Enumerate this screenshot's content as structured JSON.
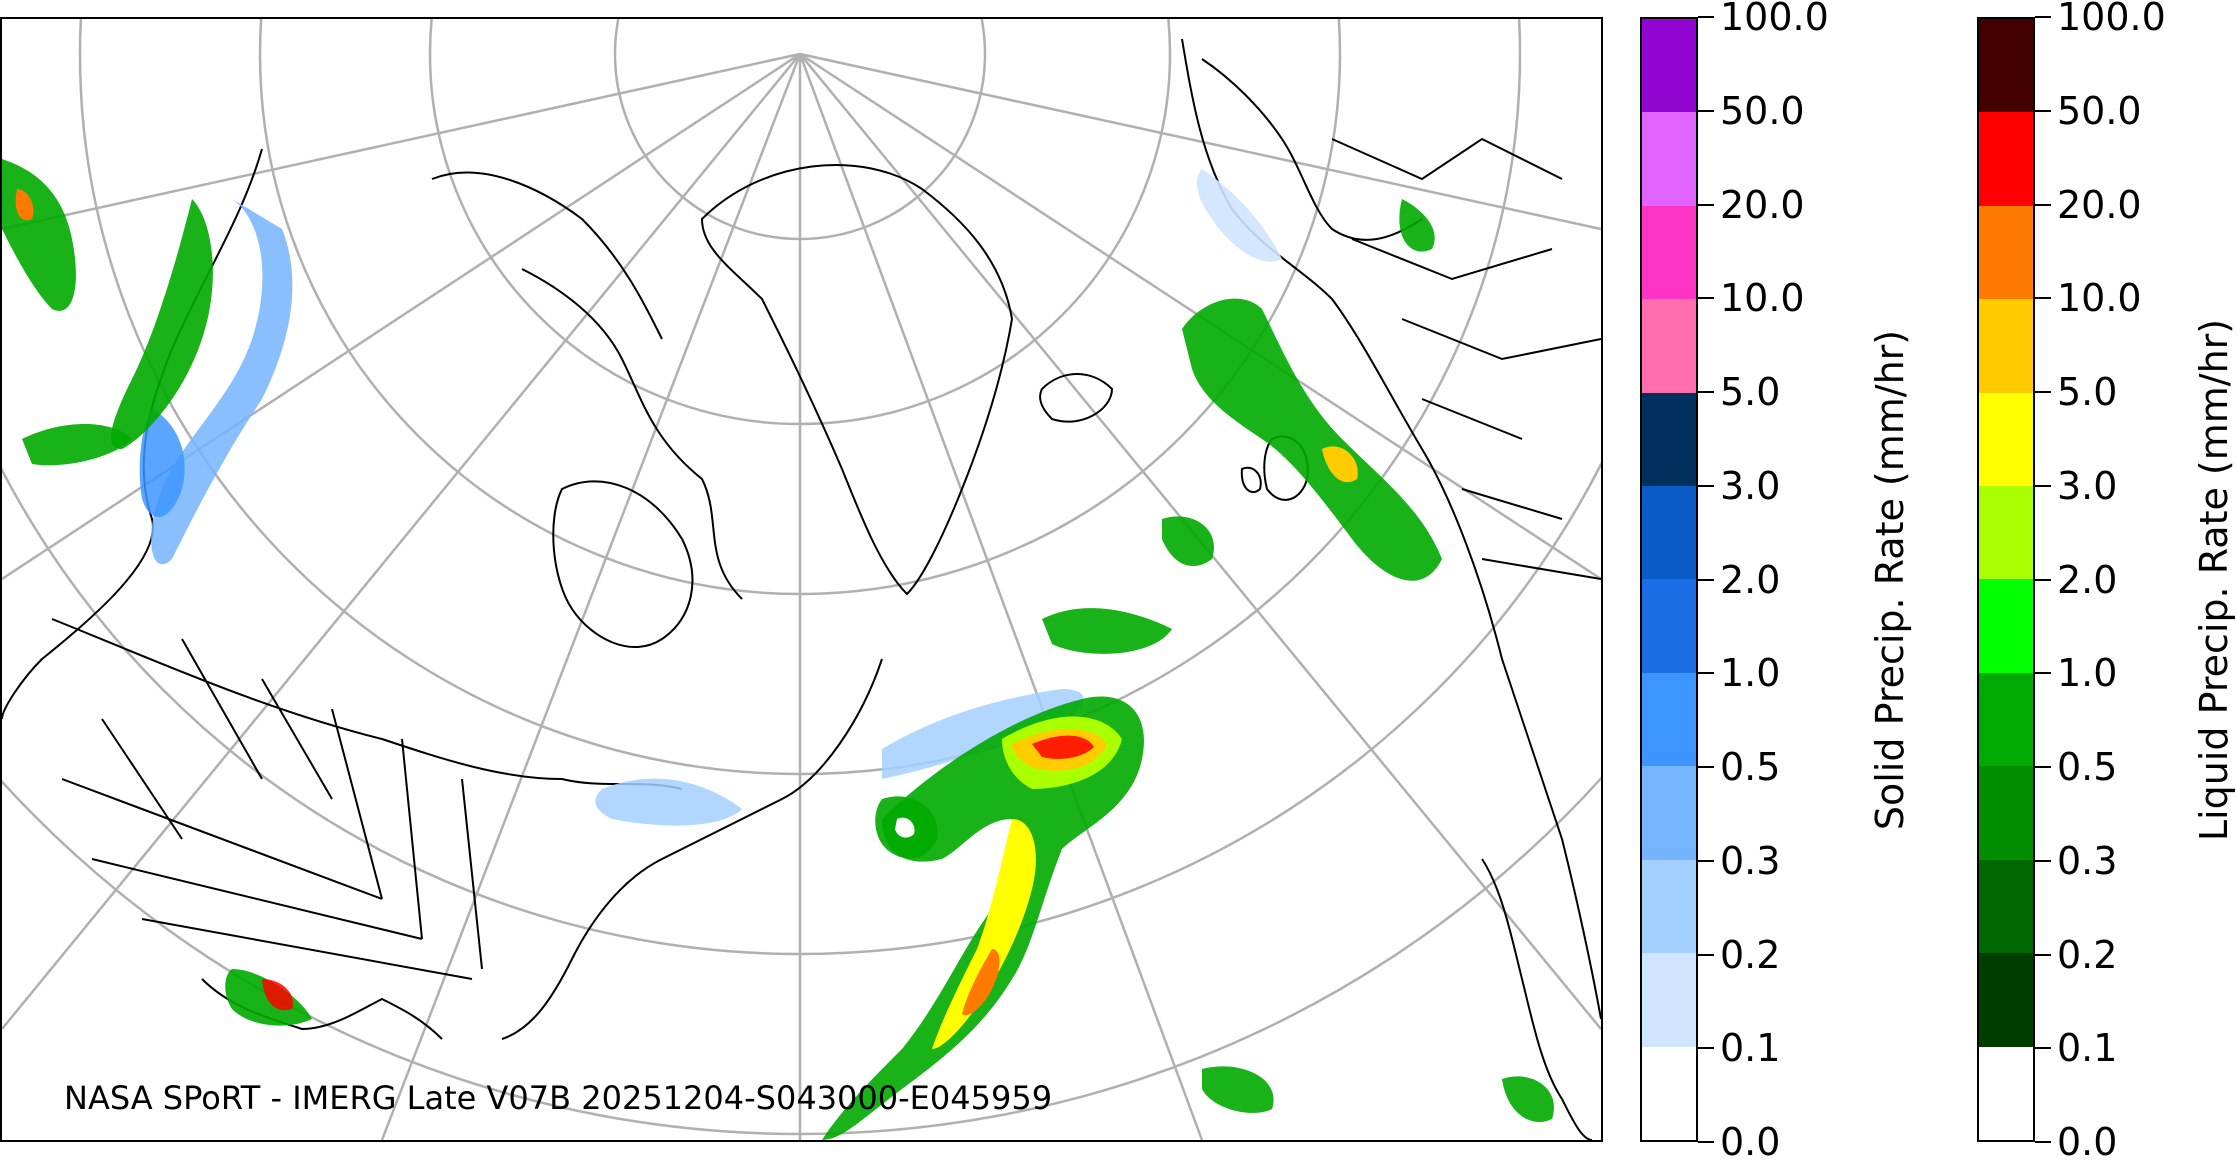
{
  "caption": "NASA SPoRT - IMERG Late V07B 20251204-S043000-E045959",
  "solid_bar": {
    "title": "Solid Precip. Rate (mm/hr)",
    "tick_labels": [
      "0.0",
      "0.1",
      "0.2",
      "0.3",
      "0.5",
      "1.0",
      "2.0",
      "3.0",
      "5.0",
      "10.0",
      "20.0",
      "50.0",
      "100.0"
    ],
    "colors": [
      "#ffffff",
      "#cfe4ff",
      "#a3cfff",
      "#75b4ff",
      "#3d95ff",
      "#1c6ee6",
      "#0b5bc7",
      "#00315e",
      "#ff6ead",
      "#ff33c4",
      "#e064ff",
      "#c238ff",
      "#9106d0"
    ]
  },
  "liquid_bar": {
    "title": "Liquid Precip. Rate (mm/hr)",
    "tick_labels": [
      "0.0",
      "0.1",
      "0.2",
      "0.3",
      "0.5",
      "1.0",
      "2.0",
      "3.0",
      "5.0",
      "10.0",
      "20.0",
      "50.0",
      "100.0"
    ],
    "colors": [
      "#ffffff",
      "#003d00",
      "#006800",
      "#008d00",
      "#00aa00",
      "#00ff00",
      "#aaff00",
      "#ffff00",
      "#ffcc00",
      "#ff7a00",
      "#ff0000",
      "#8e0000",
      "#420000"
    ]
  },
  "map": {
    "projection": "polar stereographic (North Pole)",
    "coverage": "North America, North Atlantic, Greenland, Europe",
    "grid_color": "#b0b0b0",
    "coastline_color": "#000000"
  }
}
